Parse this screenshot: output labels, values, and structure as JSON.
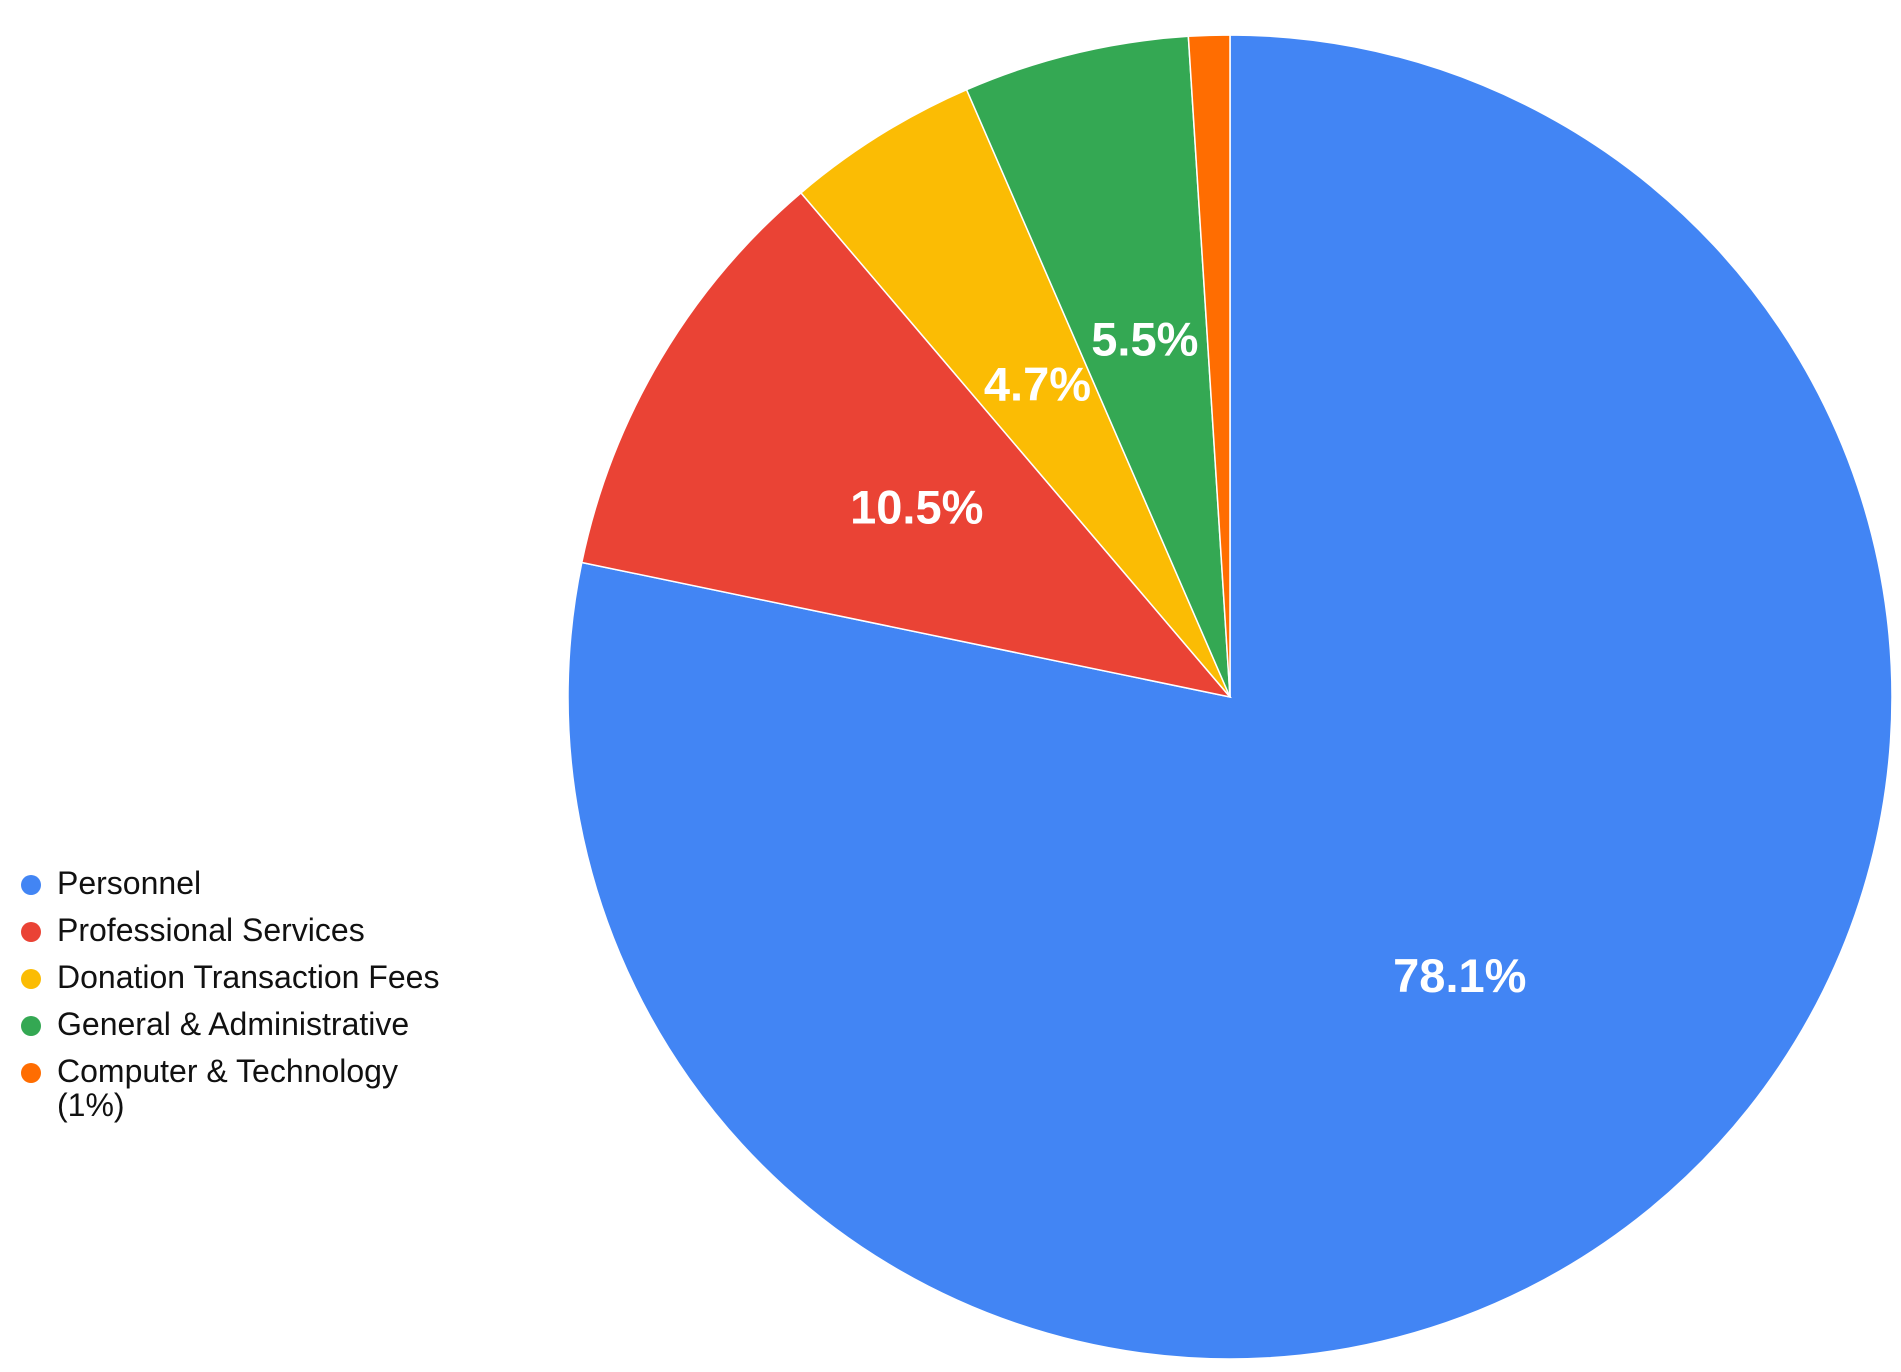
{
  "chart_data": {
    "type": "pie",
    "title": "",
    "start_angle": "top, clockwise",
    "slices": [
      {
        "name": "Personnel",
        "value": 78.1,
        "label": "78.1%",
        "color": "#4285F4"
      },
      {
        "name": "Professional Services",
        "value": 10.5,
        "label": "10.5%",
        "color": "#EA4335"
      },
      {
        "name": "Donation Transaction Fees",
        "value": 4.7,
        "label": "4.7%",
        "color": "#FBBC04"
      },
      {
        "name": "General & Administrative",
        "value": 5.5,
        "label": "5.5%",
        "color": "#34A853"
      },
      {
        "name": "Computer & Technology (1%)",
        "value": 1.0,
        "label": "",
        "color": "#FF6D01"
      }
    ],
    "legend": {
      "position": "left",
      "items": [
        {
          "label": "Personnel",
          "color": "#4285F4"
        },
        {
          "label": "Professional Services",
          "color": "#EA4335"
        },
        {
          "label": "Donation Transaction Fees",
          "color": "#FBBC04"
        },
        {
          "label": "General & Administrative",
          "color": "#34A853"
        },
        {
          "label": "Computer & Technology (1%)",
          "color": "#FF6D01"
        }
      ]
    }
  }
}
